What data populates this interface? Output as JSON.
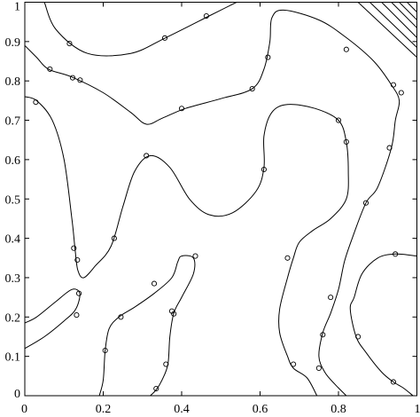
{
  "chart_data": {
    "type": "scatter",
    "title": "",
    "xlabel": "",
    "ylabel": "",
    "xlim": [
      0,
      1
    ],
    "ylim": [
      0,
      1
    ],
    "grid": false,
    "x_ticks": [
      0,
      0.2,
      0.4,
      0.6,
      0.8,
      1
    ],
    "y_ticks": [
      0,
      0.1,
      0.2,
      0.3,
      0.4,
      0.5,
      0.6,
      0.7,
      0.8,
      0.9,
      1
    ],
    "x_tick_labels": [
      "0",
      "0.2",
      "0.4",
      "0.6",
      "0.8",
      "1"
    ],
    "y_tick_labels": [
      "0",
      "0.1",
      "0.2",
      "0.3",
      "0.4",
      "0.5",
      "0.6",
      "0.7",
      "0.8",
      "0.9",
      "1"
    ],
    "contours": [
      [
        [
          0.05,
          1.0
        ],
        [
          0.08,
          0.93
        ],
        [
          0.16,
          0.87
        ],
        [
          0.27,
          0.87
        ],
        [
          0.36,
          0.91
        ],
        [
          0.47,
          0.965
        ],
        [
          0.54,
          1.0
        ]
      ],
      [
        [
          0.0,
          0.89
        ],
        [
          0.03,
          0.86
        ],
        [
          0.06,
          0.83
        ],
        [
          0.12,
          0.81
        ],
        [
          0.2,
          0.77
        ],
        [
          0.27,
          0.72
        ],
        [
          0.31,
          0.69
        ],
        [
          0.35,
          0.705
        ],
        [
          0.41,
          0.73
        ],
        [
          0.5,
          0.755
        ],
        [
          0.58,
          0.78
        ],
        [
          0.61,
          0.83
        ],
        [
          0.625,
          0.9
        ],
        [
          0.63,
          0.96
        ],
        [
          0.66,
          0.98
        ],
        [
          0.75,
          0.955
        ],
        [
          0.82,
          0.91
        ],
        [
          0.89,
          0.85
        ],
        [
          0.935,
          0.79
        ],
        [
          0.955,
          0.75
        ],
        [
          0.945,
          0.7
        ],
        [
          0.935,
          0.63
        ],
        [
          0.9,
          0.53
        ],
        [
          0.87,
          0.49
        ],
        [
          0.835,
          0.4
        ],
        [
          0.815,
          0.34
        ],
        [
          0.8,
          0.27
        ],
        [
          0.78,
          0.21
        ],
        [
          0.76,
          0.16
        ],
        [
          0.75,
          0.1
        ],
        [
          0.765,
          0.06
        ],
        [
          0.79,
          0.03
        ],
        [
          0.82,
          0.0
        ]
      ],
      [
        [
          0.0,
          0.76
        ],
        [
          0.03,
          0.75
        ],
        [
          0.07,
          0.7
        ],
        [
          0.1,
          0.6
        ],
        [
          0.12,
          0.45
        ],
        [
          0.128,
          0.375
        ],
        [
          0.135,
          0.32
        ],
        [
          0.15,
          0.3
        ],
        [
          0.18,
          0.33
        ],
        [
          0.22,
          0.38
        ],
        [
          0.25,
          0.48
        ],
        [
          0.28,
          0.57
        ],
        [
          0.32,
          0.61
        ],
        [
          0.37,
          0.58
        ],
        [
          0.42,
          0.5
        ],
        [
          0.47,
          0.46
        ],
        [
          0.53,
          0.465
        ],
        [
          0.59,
          0.52
        ],
        [
          0.61,
          0.58
        ],
        [
          0.61,
          0.66
        ],
        [
          0.63,
          0.72
        ],
        [
          0.67,
          0.74
        ],
        [
          0.74,
          0.73
        ],
        [
          0.8,
          0.7
        ],
        [
          0.82,
          0.645
        ],
        [
          0.825,
          0.57
        ],
        [
          0.82,
          0.5
        ],
        [
          0.78,
          0.45
        ],
        [
          0.735,
          0.42
        ],
        [
          0.7,
          0.39
        ],
        [
          0.685,
          0.35
        ],
        [
          0.67,
          0.3
        ],
        [
          0.65,
          0.22
        ],
        [
          0.65,
          0.16
        ],
        [
          0.67,
          0.1
        ],
        [
          0.685,
          0.07
        ],
        [
          0.72,
          0.045
        ],
        [
          0.745,
          0.0
        ]
      ],
      [
        [
          0.0,
          0.12
        ],
        [
          0.05,
          0.15
        ],
        [
          0.1,
          0.19
        ],
        [
          0.13,
          0.22
        ],
        [
          0.14,
          0.26
        ],
        [
          0.12,
          0.27
        ],
        [
          0.08,
          0.24
        ],
        [
          0.03,
          0.2
        ],
        [
          0.0,
          0.185
        ]
      ],
      [
        [
          0.19,
          0.0
        ],
        [
          0.2,
          0.04
        ],
        [
          0.205,
          0.115
        ],
        [
          0.215,
          0.17
        ],
        [
          0.24,
          0.2
        ],
        [
          0.28,
          0.225
        ],
        [
          0.33,
          0.26
        ],
        [
          0.375,
          0.3
        ],
        [
          0.39,
          0.34
        ],
        [
          0.4,
          0.355
        ],
        [
          0.43,
          0.35
        ],
        [
          0.43,
          0.31
        ],
        [
          0.4,
          0.25
        ],
        [
          0.38,
          0.21
        ],
        [
          0.37,
          0.15
        ],
        [
          0.365,
          0.08
        ],
        [
          0.35,
          0.04
        ],
        [
          0.335,
          0.015
        ],
        [
          0.32,
          0.0
        ]
      ],
      [
        [
          1.0,
          0.355
        ],
        [
          0.945,
          0.36
        ],
        [
          0.9,
          0.35
        ],
        [
          0.86,
          0.31
        ],
        [
          0.84,
          0.25
        ],
        [
          0.83,
          0.22
        ],
        [
          0.845,
          0.15
        ],
        [
          0.87,
          0.11
        ],
        [
          0.91,
          0.06
        ],
        [
          0.94,
          0.035
        ],
        [
          0.965,
          0.02
        ],
        [
          0.99,
          0.0
        ]
      ]
    ],
    "corner_lines": [
      [
        [
          0.85,
          1.0
        ],
        [
          1.0,
          0.86
        ]
      ],
      [
        [
          0.88,
          1.0
        ],
        [
          1.0,
          0.885
        ]
      ],
      [
        [
          0.91,
          1.0
        ],
        [
          1.0,
          0.91
        ]
      ],
      [
        [
          0.935,
          1.0
        ],
        [
          1.0,
          0.935
        ]
      ],
      [
        [
          0.955,
          1.0
        ],
        [
          1.0,
          0.955
        ]
      ],
      [
        [
          0.975,
          1.0
        ],
        [
          1.0,
          0.975
        ]
      ]
    ],
    "points": [
      [
        0.114,
        0.895
      ],
      [
        0.357,
        0.909
      ],
      [
        0.463,
        0.965
      ],
      [
        0.064,
        0.83
      ],
      [
        0.122,
        0.808
      ],
      [
        0.141,
        0.802
      ],
      [
        0.028,
        0.746
      ],
      [
        0.4,
        0.73
      ],
      [
        0.58,
        0.78
      ],
      [
        0.62,
        0.86
      ],
      [
        0.82,
        0.88
      ],
      [
        0.94,
        0.79
      ],
      [
        0.96,
        0.77
      ],
      [
        0.31,
        0.61
      ],
      [
        0.61,
        0.575
      ],
      [
        0.8,
        0.7
      ],
      [
        0.82,
        0.645
      ],
      [
        0.93,
        0.63
      ],
      [
        0.87,
        0.49
      ],
      [
        0.125,
        0.375
      ],
      [
        0.134,
        0.345
      ],
      [
        0.228,
        0.4
      ],
      [
        0.138,
        0.26
      ],
      [
        0.132,
        0.205
      ],
      [
        0.205,
        0.115
      ],
      [
        0.245,
        0.2
      ],
      [
        0.33,
        0.285
      ],
      [
        0.375,
        0.215
      ],
      [
        0.38,
        0.208
      ],
      [
        0.435,
        0.355
      ],
      [
        0.67,
        0.35
      ],
      [
        0.78,
        0.25
      ],
      [
        0.76,
        0.155
      ],
      [
        0.75,
        0.07
      ],
      [
        0.685,
        0.08
      ],
      [
        0.945,
        0.36
      ],
      [
        0.85,
        0.15
      ],
      [
        0.94,
        0.035
      ],
      [
        0.36,
        0.08
      ],
      [
        0.335,
        0.018
      ]
    ]
  }
}
